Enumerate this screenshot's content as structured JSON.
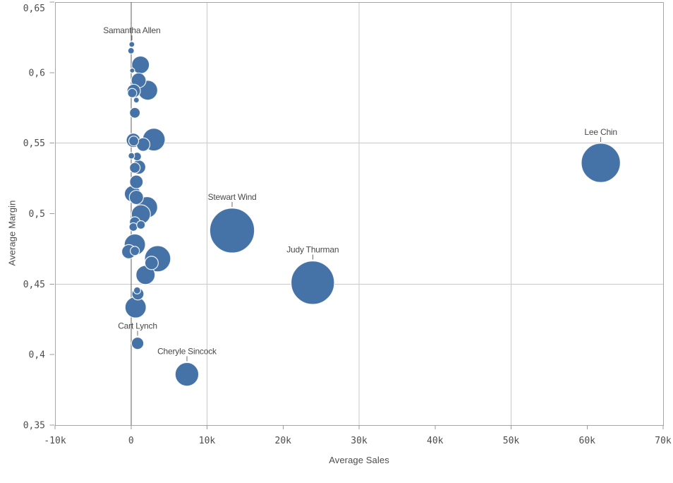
{
  "chart_data": {
    "type": "scatter",
    "title": "",
    "xlabel": "Average Sales",
    "ylabel": "Average Margin",
    "legend": "none",
    "grid": "partial",
    "x_axis": {
      "min": -10000,
      "max": 70000,
      "zero_line": 0,
      "gridline_values": [
        10000,
        30000,
        50000
      ],
      "ticks": [
        {
          "value": -10000,
          "label": "-10k"
        },
        {
          "value": 0,
          "label": "0"
        },
        {
          "value": 10000,
          "label": "10k"
        },
        {
          "value": 20000,
          "label": "20k"
        },
        {
          "value": 30000,
          "label": "30k"
        },
        {
          "value": 40000,
          "label": "40k"
        },
        {
          "value": 50000,
          "label": "50k"
        },
        {
          "value": 60000,
          "label": "60k"
        },
        {
          "value": 70000,
          "label": "70k"
        }
      ]
    },
    "y_axis": {
      "min": 0.35,
      "max": 0.65,
      "gridline_values": [
        0.55,
        0.45
      ],
      "ticks": [
        {
          "value": 0.65,
          "label": "0,65"
        },
        {
          "value": 0.6,
          "label": "0,6"
        },
        {
          "value": 0.55,
          "label": "0,55"
        },
        {
          "value": 0.5,
          "label": "0,5"
        },
        {
          "value": 0.45,
          "label": "0,45"
        },
        {
          "value": 0.4,
          "label": "0,4"
        },
        {
          "value": 0.35,
          "label": "0,35"
        }
      ]
    },
    "points": [
      {
        "sales": 100,
        "margin": 0.62,
        "r": 4,
        "label": "Samantha Allen"
      },
      {
        "sales": 0,
        "margin": 0.6155,
        "r": 4.5
      },
      {
        "sales": 1250,
        "margin": 0.6055,
        "r": 12.5
      },
      {
        "sales": 150,
        "margin": 0.6015,
        "r": 3.5
      },
      {
        "sales": 1000,
        "margin": 0.5945,
        "r": 10.5
      },
      {
        "sales": 2200,
        "margin": 0.5875,
        "r": 14
      },
      {
        "sales": 350,
        "margin": 0.587,
        "r": 9.5
      },
      {
        "sales": 150,
        "margin": 0.5855,
        "r": 6.5
      },
      {
        "sales": 700,
        "margin": 0.5805,
        "r": 4
      },
      {
        "sales": 500,
        "margin": 0.5715,
        "r": 7.5
      },
      {
        "sales": 3000,
        "margin": 0.5525,
        "r": 16
      },
      {
        "sales": 300,
        "margin": 0.552,
        "r": 10
      },
      {
        "sales": 350,
        "margin": 0.5515,
        "r": 7
      },
      {
        "sales": 1600,
        "margin": 0.549,
        "r": 9.5
      },
      {
        "sales": 800,
        "margin": 0.5405,
        "r": 6
      },
      {
        "sales": 50,
        "margin": 0.541,
        "r": 4.5
      },
      {
        "sales": 1000,
        "margin": 0.533,
        "r": 10
      },
      {
        "sales": 500,
        "margin": 0.5325,
        "r": 7.5
      },
      {
        "sales": 700,
        "margin": 0.5225,
        "r": 9.5
      },
      {
        "sales": 200,
        "margin": 0.514,
        "r": 11.5
      },
      {
        "sales": 700,
        "margin": 0.5115,
        "r": 10
      },
      {
        "sales": 2100,
        "margin": 0.5045,
        "r": 15
      },
      {
        "sales": 1300,
        "margin": 0.4995,
        "r": 13.5
      },
      {
        "sales": 500,
        "margin": 0.494,
        "r": 7.5
      },
      {
        "sales": 300,
        "margin": 0.4905,
        "r": 6
      },
      {
        "sales": 1300,
        "margin": 0.492,
        "r": 6
      },
      {
        "sales": 500,
        "margin": 0.478,
        "r": 15
      },
      {
        "sales": -300,
        "margin": 0.473,
        "r": 10
      },
      {
        "sales": 500,
        "margin": 0.4735,
        "r": 6.5
      },
      {
        "sales": 3500,
        "margin": 0.468,
        "r": 18.5
      },
      {
        "sales": 2700,
        "margin": 0.465,
        "r": 9.5
      },
      {
        "sales": 1900,
        "margin": 0.4565,
        "r": 13.5
      },
      {
        "sales": 800,
        "margin": 0.4455,
        "r": 5
      },
      {
        "sales": 900,
        "margin": 0.443,
        "r": 8.5
      },
      {
        "sales": 600,
        "margin": 0.4335,
        "r": 15
      },
      {
        "sales": 860,
        "margin": 0.408,
        "r": 8.7,
        "label": "Cart Lynch"
      },
      {
        "sales": 7350,
        "margin": 0.386,
        "r": 16.7,
        "label": "Cheryle Sincock"
      },
      {
        "sales": 13300,
        "margin": 0.488,
        "r": 31.7,
        "label": "Stewart Wind"
      },
      {
        "sales": 23900,
        "margin": 0.451,
        "r": 30.7,
        "label": "Judy Thurman"
      },
      {
        "sales": 61800,
        "margin": 0.536,
        "r": 27.7,
        "label": "Lee Chin"
      }
    ]
  },
  "colors": {
    "bubble_fill": "#4673a7",
    "bubble_stroke": "rgba(255,255,255,0.9)",
    "grid": "#c9c9c9",
    "border": "#a6a6a6",
    "zero_line": "#5c5c5c",
    "tick": "#9b9b9b",
    "tick_text": "#4d4d4d",
    "label_text": "#4a4a4a",
    "label_tick": "#6b6b6b",
    "background": "#ffffff"
  }
}
